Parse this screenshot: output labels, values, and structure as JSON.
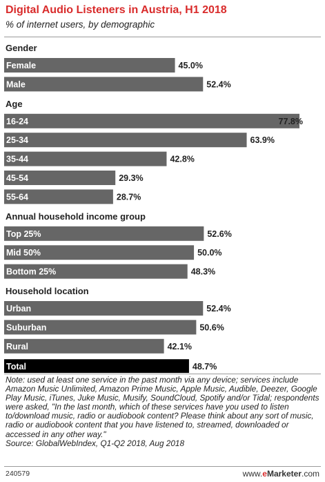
{
  "header": {
    "title": "Digital Audio Listeners in Austria, H1 2018",
    "subtitle": "% of internet users, by demographic"
  },
  "colors": {
    "bar": "#666666",
    "total_bar": "#000000",
    "title": "#d92b2b"
  },
  "chart_data": {
    "type": "bar",
    "orientation": "horizontal",
    "value_suffix": "%",
    "xlim": [
      0,
      77.8
    ],
    "groups": [
      {
        "name": "Gender",
        "categories": [
          "Female",
          "Male"
        ],
        "values": [
          45.0,
          52.4
        ]
      },
      {
        "name": "Age",
        "categories": [
          "16-24",
          "25-34",
          "35-44",
          "45-54",
          "55-64"
        ],
        "values": [
          77.8,
          63.9,
          42.8,
          29.3,
          28.7
        ]
      },
      {
        "name": "Annual household income group",
        "categories": [
          "Top 25%",
          "Mid 50%",
          "Bottom 25%"
        ],
        "values": [
          52.6,
          50.0,
          48.3
        ]
      },
      {
        "name": "Household location",
        "categories": [
          "Urban",
          "Suburban",
          "Rural"
        ],
        "values": [
          52.4,
          50.6,
          42.1
        ]
      },
      {
        "name": "",
        "categories": [
          "Total"
        ],
        "values": [
          48.7
        ],
        "highlight": true
      }
    ]
  },
  "footer": {
    "note": "Note: used at least one service in the past month via any device; services include Amazon Music Unlimited, Amazon Prime Music, Apple Music, Audible, Deezer, Google Play Music, iTunes, Juke Music, Musify, SoundCloud, Spotify and/or Tidal; respondents were asked, \"In the last month, which of these services have you used to listen to/download music, radio or audiobook content? Please think about any sort of music, radio or audiobook content that you have listened to, streamed, downloaded or accessed in any other way.\"",
    "source": "Source: GlobalWebIndex, Q1-Q2 2018, Aug 2018",
    "chart_id": "240579",
    "brand_prefix": "www.",
    "brand_e": "e",
    "brand_name": "Marketer",
    "brand_suffix": ".com"
  }
}
